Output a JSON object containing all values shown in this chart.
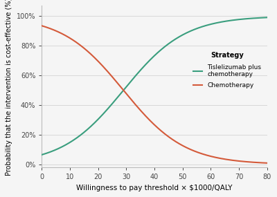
{
  "xlabel": "Willingness to pay threshold × $1000/QALY",
  "ylabel": "Probability that the intervention is cost-effective (%)",
  "xmin": 0,
  "xmax": 80,
  "xticks": [
    0,
    10,
    20,
    30,
    40,
    50,
    60,
    70,
    80
  ],
  "yticks": [
    0,
    20,
    40,
    60,
    80,
    100
  ],
  "ytick_labels": [
    "0%",
    "20%",
    "40%",
    "60%",
    "80%",
    "100%"
  ],
  "legend_title": "Strategy",
  "legend_label_tisi": "Tislelizumab plus\nchemotherapy",
  "legend_label_chemo": "Chemotherapy",
  "color_tisi": "#3a9e7e",
  "color_chemo": "#d45a3a",
  "background_color": "#f5f5f5",
  "grid_color": "#d8d8d8",
  "tisi_mid": 30.0,
  "tisi_k": 0.2,
  "chemo_mid": 28.0,
  "chemo_k": 0.18
}
